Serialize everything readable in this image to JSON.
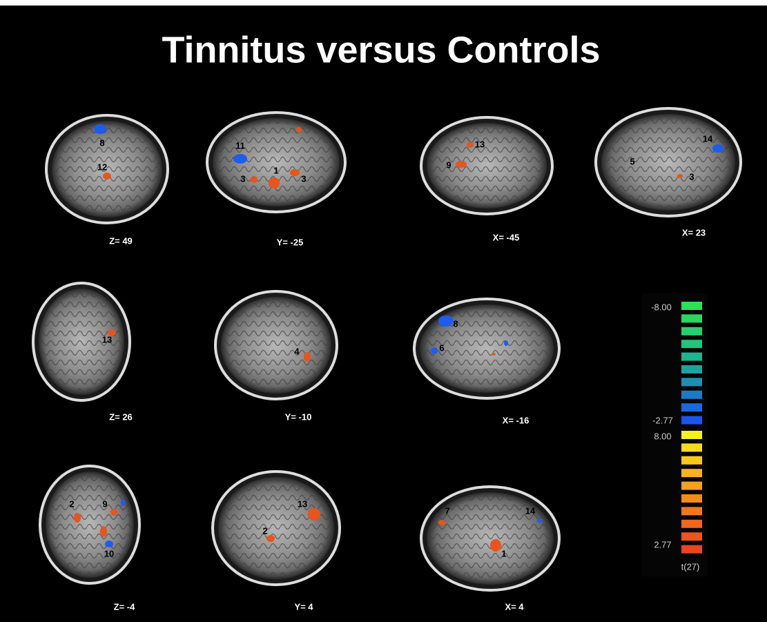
{
  "title": "Tinnitus versus Controls",
  "panels": [
    {
      "coordinate": "Z= 49",
      "labels": [
        "8",
        "12"
      ]
    },
    {
      "coordinate": "Y= -25",
      "labels": [
        "11",
        "1",
        "3",
        "3"
      ]
    },
    {
      "coordinate": "X= -45",
      "labels": [
        "13",
        "9"
      ]
    },
    {
      "coordinate": "X= 23",
      "labels": [
        "14",
        "5",
        "3"
      ]
    },
    {
      "coordinate": "Z= 26",
      "labels": [
        "13"
      ]
    },
    {
      "coordinate": "Y= -10",
      "labels": [
        "4"
      ]
    },
    {
      "coordinate": "X= -16",
      "labels": [
        "8",
        "6"
      ]
    },
    {
      "coordinate": "Z= -4",
      "labels": [
        "2",
        "9",
        "10"
      ]
    },
    {
      "coordinate": "Y= 4",
      "labels": [
        "13",
        "2"
      ]
    },
    {
      "coordinate": "X= 4",
      "labels": [
        "7",
        "14",
        "1"
      ]
    }
  ],
  "colorbar": {
    "negative_max": "-8.00",
    "negative_min": "-2.77",
    "positive_max": "8.00",
    "positive_min": "2.77",
    "stat": "t(27)"
  }
}
